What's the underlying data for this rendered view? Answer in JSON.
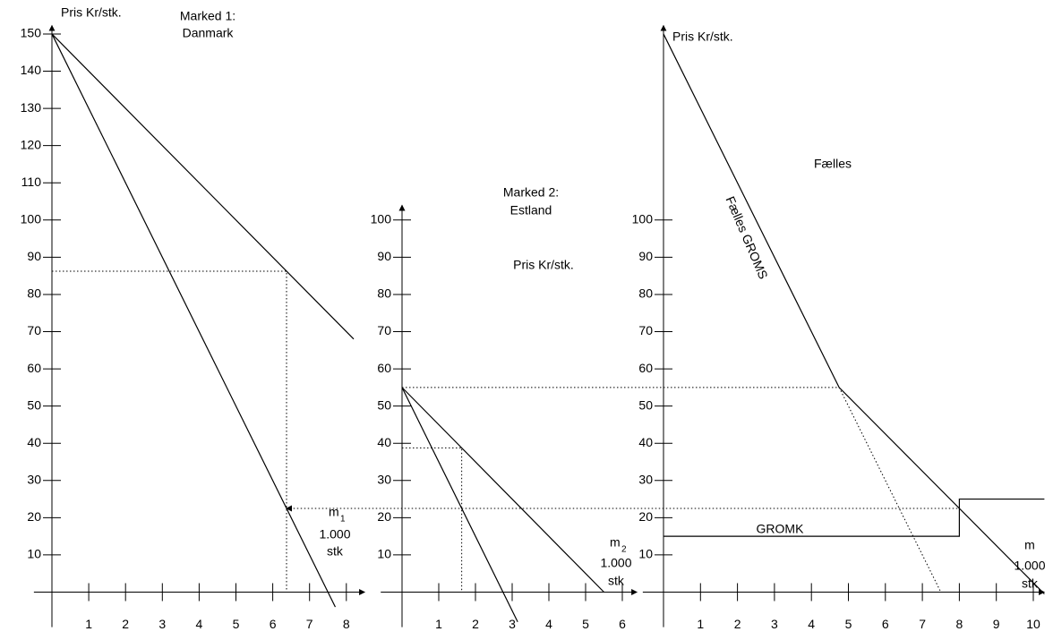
{
  "chart_data": [
    {
      "type": "line",
      "title": "Marked 1:",
      "subtitle": "Danmark",
      "ylabel": "Pris Kr/stk.",
      "xlabel": [
        "m",
        "1",
        "1.000",
        "stk"
      ],
      "xlim": [
        -0.49,
        8.5
      ],
      "ylim": [
        -9.4,
        152.3
      ],
      "xticks": [
        1,
        2,
        3,
        4,
        5,
        6,
        7,
        8
      ],
      "yticks": [
        10,
        20,
        30,
        40,
        50,
        60,
        70,
        80,
        90,
        100,
        110,
        120,
        130,
        140,
        150
      ],
      "series": [
        {
          "style": "solid",
          "color": "#000000",
          "x": [
            0,
            8.2
          ],
          "values": [
            150,
            68
          ]
        },
        {
          "style": "solid",
          "color": "#000000",
          "x": [
            0,
            7.7
          ],
          "values": [
            150,
            -4
          ]
        },
        {
          "style": "dotted",
          "color": "#000000",
          "x": [
            0,
            6.375,
            6.375
          ],
          "values": [
            86.25,
            86.25,
            0
          ]
        }
      ]
    },
    {
      "type": "line",
      "title": "Marked 2:",
      "subtitle": "Estland",
      "ylabel": "Pris Kr/stk.",
      "xlabel": [
        "m",
        "2",
        "1.000",
        "stk"
      ],
      "xlim": [
        -0.58,
        6.4
      ],
      "ylim": [
        -9.4,
        104
      ],
      "xticks": [
        1,
        2,
        3,
        4,
        5,
        6
      ],
      "yticks": [
        10,
        20,
        30,
        40,
        50,
        60,
        70,
        80,
        90,
        100
      ],
      "series": [
        {
          "style": "solid",
          "color": "#000000",
          "x": [
            0,
            5.5
          ],
          "values": [
            55,
            0
          ]
        },
        {
          "style": "solid",
          "color": "#000000",
          "x": [
            0,
            3.15
          ],
          "values": [
            55,
            -8
          ]
        },
        {
          "style": "dotted",
          "color": "#000000",
          "x": [
            0,
            1.625,
            1.625
          ],
          "values": [
            38.75,
            38.75,
            0
          ]
        }
      ]
    },
    {
      "type": "line",
      "title": "Fælles",
      "ylabel": "Pris Kr/stk.",
      "xlabel": [
        "m",
        "1.000",
        "stk"
      ],
      "xlim": [
        -0.56,
        10.3
      ],
      "ylim": [
        -9.4,
        152.3
      ],
      "xticks": [
        1,
        2,
        3,
        4,
        5,
        6,
        7,
        8,
        9,
        10
      ],
      "yticks": [
        10,
        20,
        30,
        40,
        50,
        60,
        70,
        80,
        90,
        100
      ],
      "series": [
        {
          "name": "Fælles GROMS",
          "style": "solid",
          "color": "#000000",
          "x": [
            0,
            4.75,
            10.3
          ],
          "values": [
            150,
            55,
            -0.5
          ]
        },
        {
          "style": "dotted",
          "color": "#000000",
          "x": [
            4.75,
            7.5
          ],
          "values": [
            55,
            0
          ]
        },
        {
          "name": "GROMK",
          "style": "solid",
          "color": "#000000",
          "x": [
            0,
            8,
            8,
            10.3
          ],
          "values": [
            15,
            15,
            25,
            25
          ]
        },
        {
          "style": "dotted",
          "color": "#000000",
          "x": [
            -7.07,
            4.75
          ],
          "values": [
            55,
            55
          ]
        },
        {
          "style": "dotted",
          "color": "#000000",
          "arrow": "start",
          "x": [
            -10.2,
            8
          ],
          "values": [
            22.5,
            22.5
          ]
        }
      ]
    }
  ]
}
